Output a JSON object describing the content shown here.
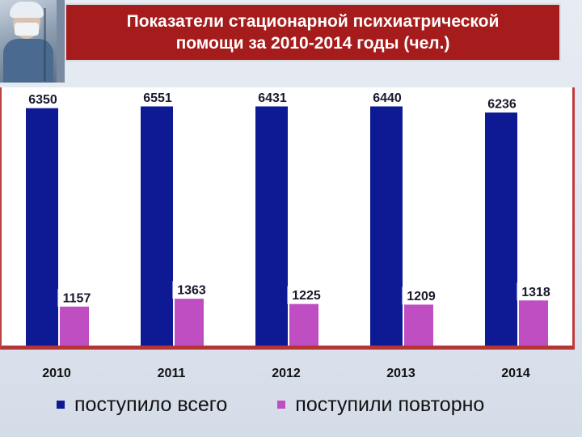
{
  "title": "Показатели стационарной психиатрической\nпомощи за 2010-2014 годы (чел.)",
  "colors": {
    "title_bg": "#a61b1b",
    "series_total": "#0d1a93",
    "series_repeat": "#bf4ec3"
  },
  "chart_data": {
    "type": "bar",
    "title": "Показатели стационарной психиатрической помощи за 2010-2014 годы (чел.)",
    "categories": [
      "2010",
      "2011",
      "2012",
      "2013",
      "2014"
    ],
    "series": [
      {
        "name": "поступило всего",
        "values": [
          6350,
          6551,
          6431,
          6440,
          6236
        ],
        "color": "#0d1a93"
      },
      {
        "name": "поступили повторно",
        "values": [
          1157,
          1363,
          1225,
          1209,
          1318
        ],
        "color": "#bf4ec3"
      }
    ],
    "ylim": [
      0,
      6650
    ],
    "xlabel": "",
    "ylabel": "",
    "grid": false,
    "legend_position": "bottom"
  }
}
